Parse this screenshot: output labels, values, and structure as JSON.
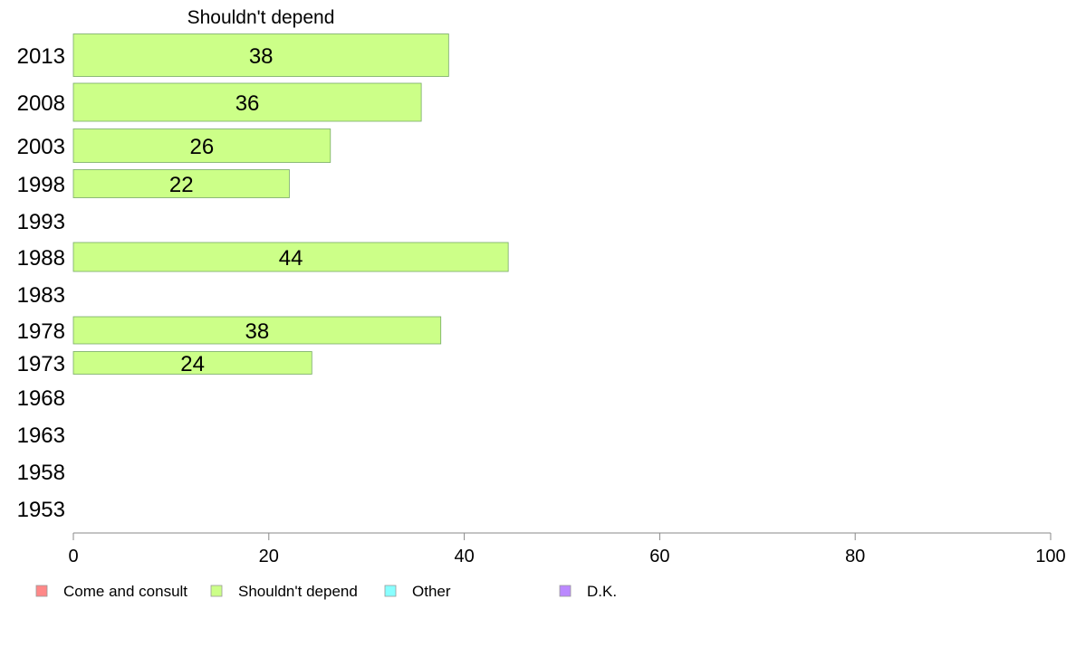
{
  "chart_data": {
    "type": "bar",
    "orientation": "horizontal",
    "title": "Shouldn't depend",
    "xlabel": "",
    "ylabel": "",
    "xlim": [
      0,
      100
    ],
    "x_ticks": [
      "0",
      "20",
      "40",
      "60",
      "80",
      "100"
    ],
    "grid": false,
    "categories": [
      "2013",
      "2008",
      "2003",
      "1998",
      "1993",
      "1988",
      "1983",
      "1978",
      "1973",
      "1968",
      "1963",
      "1958",
      "1953"
    ],
    "series": [
      {
        "name": "Shouldn't depend",
        "color": "#ccff88",
        "values": [
          38.4,
          35.6,
          26.3,
          22.1,
          null,
          44.5,
          null,
          37.6,
          24.4,
          null,
          null,
          null,
          null
        ],
        "labels": [
          "38",
          "36",
          "26",
          "22",
          "",
          "44",
          "",
          "38",
          "24",
          "",
          "",
          "",
          ""
        ]
      }
    ],
    "legend": {
      "placement": "bottom-left",
      "items": [
        {
          "label": "Come and consult",
          "color": "#ff8888"
        },
        {
          "label": "Shouldn't depend",
          "color": "#ccff88"
        },
        {
          "label": "Other",
          "color": "#88ffff"
        },
        {
          "label": "D.K.",
          "color": "#bb88ff"
        }
      ]
    }
  }
}
